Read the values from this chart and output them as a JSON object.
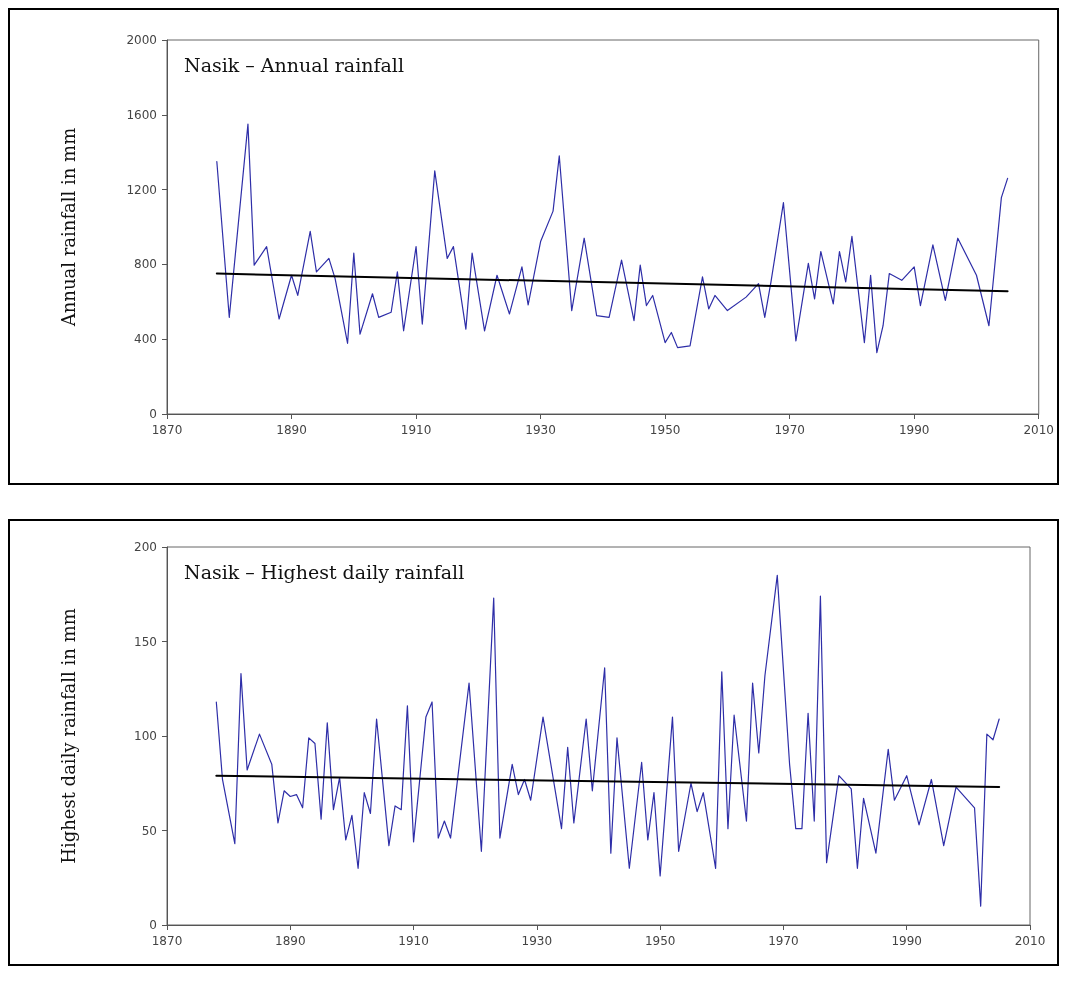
{
  "chart_data": [
    {
      "type": "line",
      "title": "Nasik – Annual rainfall",
      "ylabel": "Annual rainfall in mm",
      "xlim": [
        1870,
        2010
      ],
      "xticks": [
        1870,
        1890,
        1910,
        1930,
        1950,
        1970,
        1990,
        2010
      ],
      "ylim": [
        0,
        2000
      ],
      "yticks": [
        0,
        400,
        800,
        1200,
        1600,
        2000
      ],
      "marker": "none",
      "line_style": "solid",
      "series": [
        {
          "color": "#2e2ea8",
          "x": [
            1878,
            1880,
            1883,
            1884,
            1886,
            1888,
            1890,
            1891,
            1893,
            1894,
            1896,
            1897,
            1899,
            1900,
            1901,
            1903,
            1904,
            1906,
            1907,
            1908,
            1910,
            1911,
            1913,
            1915,
            1916,
            1918,
            1919,
            1921,
            1923,
            1925,
            1927,
            1928,
            1930,
            1932,
            1933,
            1935,
            1937,
            1939,
            1941,
            1943,
            1945,
            1946,
            1947,
            1948,
            1950,
            1951,
            1952,
            1954,
            1956,
            1957,
            1958,
            1960,
            1963,
            1965,
            1966,
            1967,
            1969,
            1971,
            1973,
            1974,
            1975,
            1977,
            1978,
            1979,
            1980,
            1982,
            1983,
            1984,
            1985,
            1986,
            1988,
            1990,
            1991,
            1993,
            1995,
            1997,
            2000,
            2002,
            2004,
            2005
          ],
          "values": [
            1350,
            517,
            1550,
            796,
            895,
            508,
            742,
            634,
            977,
            760,
            832,
            724,
            378,
            860,
            427,
            643,
            517,
            544,
            760,
            445,
            895,
            481,
            1300,
            832,
            895,
            454,
            860,
            445,
            742,
            535,
            787,
            584,
            922,
            1085,
            1380,
            553,
            940,
            526,
            517,
            823,
            499,
            796,
            580,
            634,
            382,
            436,
            355,
            364,
            733,
            562,
            634,
            553,
            625,
            697,
            517,
            706,
            1130,
            391,
            805,
            616,
            869,
            589,
            869,
            706,
            950,
            382,
            742,
            328,
            472,
            751,
            715,
            787,
            580,
            905,
            607,
            940,
            742,
            472,
            1157,
            1260
          ]
        },
        {
          "color": "#000000",
          "x": [
            1878,
            2005
          ],
          "values": [
            751,
            656
          ]
        }
      ]
    },
    {
      "type": "line",
      "title": "Nasik – Highest daily rainfall",
      "ylabel": "Highest daily rainfall in mm",
      "xlim": [
        1870,
        2010
      ],
      "xticks": [
        1870,
        1890,
        1910,
        1930,
        1950,
        1970,
        1990,
        2010
      ],
      "ylim": [
        0,
        200
      ],
      "yticks": [
        0,
        50,
        100,
        150,
        200
      ],
      "marker": "none",
      "line_style": "solid",
      "series": [
        {
          "color": "#2e2ea8",
          "x": [
            1878,
            1879,
            1881,
            1882,
            1883,
            1885,
            1887,
            1888,
            1889,
            1890,
            1891,
            1892,
            1893,
            1894,
            1895,
            1896,
            1897,
            1898,
            1899,
            1900,
            1901,
            1902,
            1903,
            1904,
            1906,
            1907,
            1908,
            1909,
            1910,
            1912,
            1913,
            1914,
            1915,
            1916,
            1919,
            1921,
            1923,
            1924,
            1926,
            1927,
            1928,
            1929,
            1931,
            1934,
            1935,
            1936,
            1938,
            1939,
            1941,
            1942,
            1943,
            1945,
            1947,
            1948,
            1949,
            1950,
            1952,
            1953,
            1955,
            1956,
            1957,
            1959,
            1960,
            1961,
            1962,
            1964,
            1965,
            1966,
            1967,
            1969,
            1971,
            1972,
            1973,
            1974,
            1975,
            1976,
            1977,
            1979,
            1981,
            1982,
            1983,
            1985,
            1987,
            1988,
            1990,
            1992,
            1994,
            1996,
            1998,
            2001,
            2002,
            2003,
            2004,
            2005
          ],
          "values": [
            118,
            77,
            43,
            133,
            82,
            101,
            85,
            54,
            71,
            68,
            69,
            62,
            99,
            96,
            56,
            107,
            61,
            78,
            45,
            58,
            30,
            70,
            59,
            109,
            42,
            63,
            61,
            116,
            44,
            110,
            118,
            46,
            55,
            46,
            128,
            39,
            173,
            46,
            85,
            69,
            77,
            66,
            110,
            51,
            94,
            54,
            109,
            71,
            136,
            38,
            99,
            30,
            86,
            45,
            70,
            26,
            110,
            39,
            75,
            60,
            70,
            30,
            134,
            51,
            111,
            55,
            128,
            91,
            132,
            185,
            85,
            51,
            51,
            112,
            55,
            174,
            33,
            79,
            72,
            30,
            67,
            38,
            93,
            66,
            79,
            53,
            77,
            42,
            73,
            62,
            10,
            101,
            98,
            109
          ]
        },
        {
          "color": "#000000",
          "x": [
            1878,
            2005
          ],
          "values": [
            79,
            73
          ]
        }
      ]
    }
  ]
}
